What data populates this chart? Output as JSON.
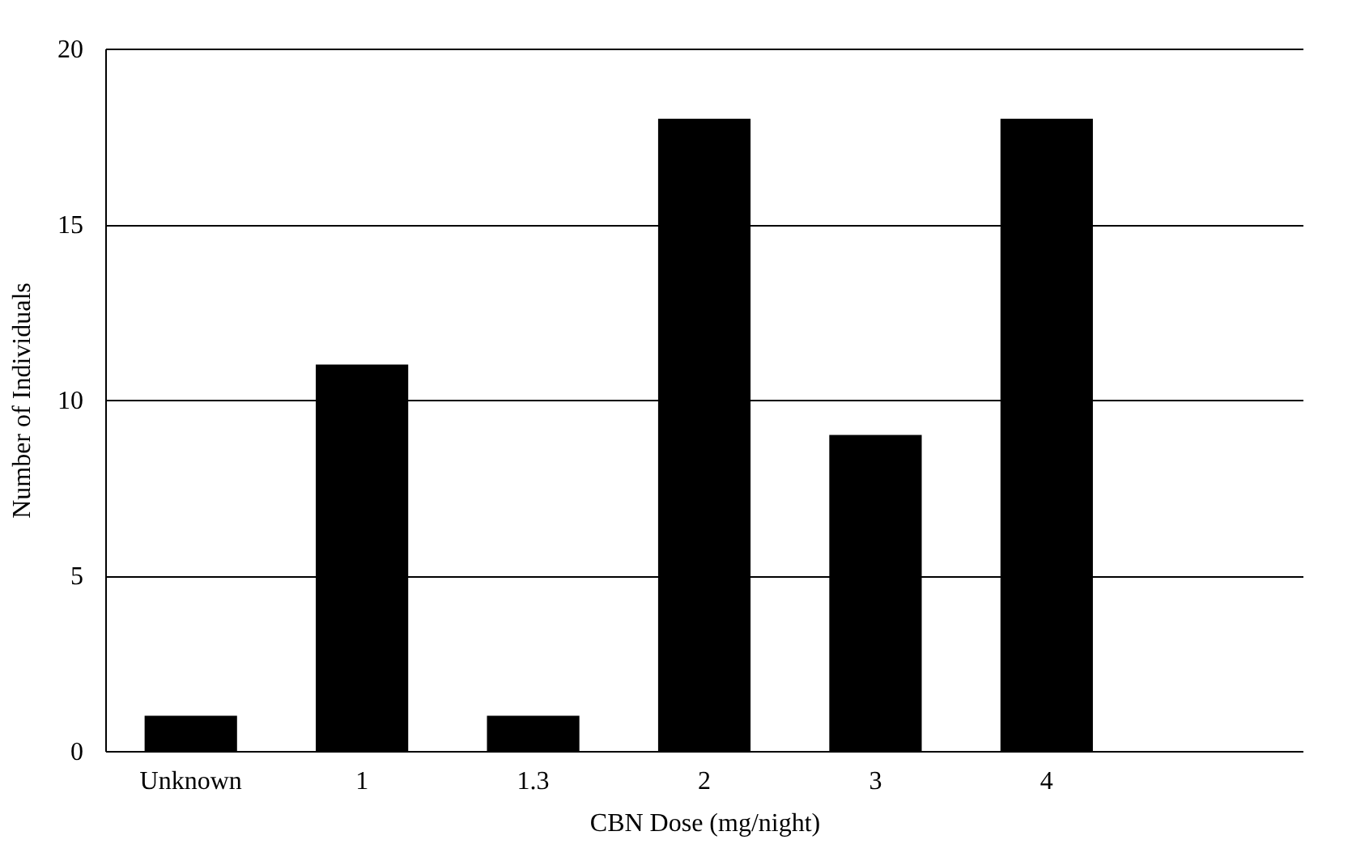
{
  "chart_data": {
    "type": "bar",
    "xlabel": "CBN Dose (mg/night)",
    "ylabel": "Number of Individuals",
    "categories": [
      "Unknown",
      "1",
      "1.3",
      "2",
      "3",
      "4",
      null
    ],
    "values": [
      1,
      11,
      1,
      18,
      9,
      18,
      null
    ],
    "color": "#000000",
    "ylim": [
      0,
      20
    ],
    "yticks": [
      0,
      5,
      10,
      15,
      20
    ],
    "grid": "y"
  }
}
